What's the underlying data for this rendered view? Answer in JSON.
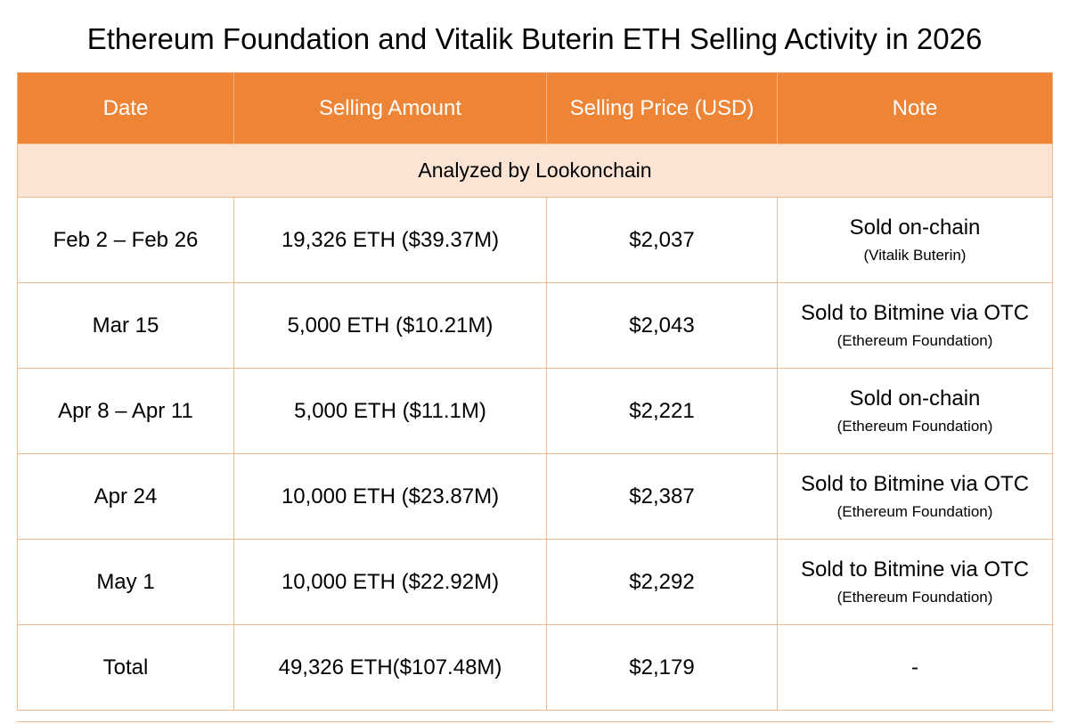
{
  "title": "Ethereum Foundation and Vitalik Buterin ETH Selling Activity in 2026",
  "colors": {
    "header_bg": "#ed8436",
    "header_text": "#ffffff",
    "subheader_bg": "#fce4d5",
    "border": "#f1b98c"
  },
  "table": {
    "headers": {
      "date": "Date",
      "amount": "Selling Amount",
      "price": "Selling Price (USD)",
      "note": "Note"
    },
    "analyzed_by": "Analyzed by Lookonchain",
    "rows": [
      {
        "date": "Feb 2 – Feb 26",
        "amount": "19,326 ETH ($39.37M)",
        "price": "$2,037",
        "note": "Sold on-chain",
        "note_sub": "(Vitalik Buterin)"
      },
      {
        "date": "Mar 15",
        "amount": "5,000 ETH ($10.21M)",
        "price": "$2,043",
        "note": "Sold to Bitmine via OTC",
        "note_sub": "(Ethereum Foundation)"
      },
      {
        "date": "Apr 8 – Apr 11",
        "amount": "5,000 ETH ($11.1M)",
        "price": "$2,221",
        "note": "Sold on-chain",
        "note_sub": "(Ethereum Foundation)"
      },
      {
        "date": "Apr 24",
        "amount": "10,000 ETH ($23.87M)",
        "price": "$2,387",
        "note": "Sold to Bitmine via OTC",
        "note_sub": "(Ethereum Foundation)"
      },
      {
        "date": "May 1",
        "amount": "10,000 ETH ($22.92M)",
        "price": "$2,292",
        "note": "Sold to Bitmine via OTC",
        "note_sub": "(Ethereum Foundation)"
      }
    ],
    "total": {
      "label": "Total",
      "amount": "49,326 ETH($107.48M)",
      "price": "$2,179",
      "note": "-"
    }
  }
}
